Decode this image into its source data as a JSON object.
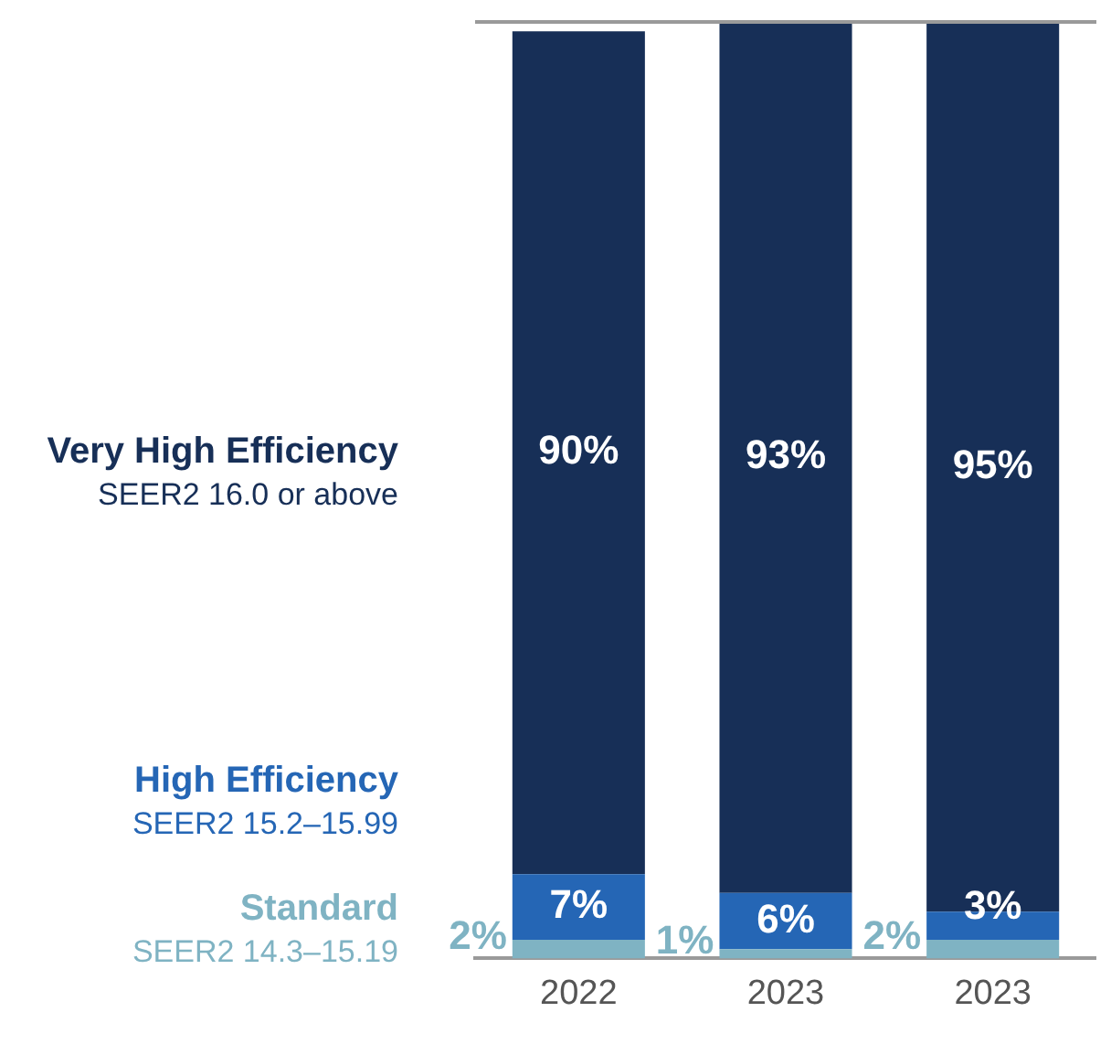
{
  "chart_data": {
    "type": "bar",
    "stacked": true,
    "categories": [
      "2022",
      "2023",
      "2023"
    ],
    "series": [
      {
        "name": "Standard\nSEER2 14.3–15.19",
        "color": "#7fb3c3",
        "values": [
          2,
          1,
          2
        ],
        "value_labels": [
          "2%",
          "1%",
          "2%"
        ]
      },
      {
        "name": "High Efficiency\nSEER2 15.2–15.99",
        "color": "#2566b5",
        "values": [
          7,
          6,
          3
        ],
        "value_labels": [
          "7%",
          "6%",
          "3%"
        ]
      },
      {
        "name": "Very High Efficiency\nSEER2 16.0 or above",
        "color": "#172f57",
        "values": [
          90,
          93,
          95
        ],
        "value_labels": [
          "90%",
          "93%",
          "95%"
        ]
      }
    ],
    "tick_labels": "x",
    "legend": "left",
    "grid": false
  }
}
